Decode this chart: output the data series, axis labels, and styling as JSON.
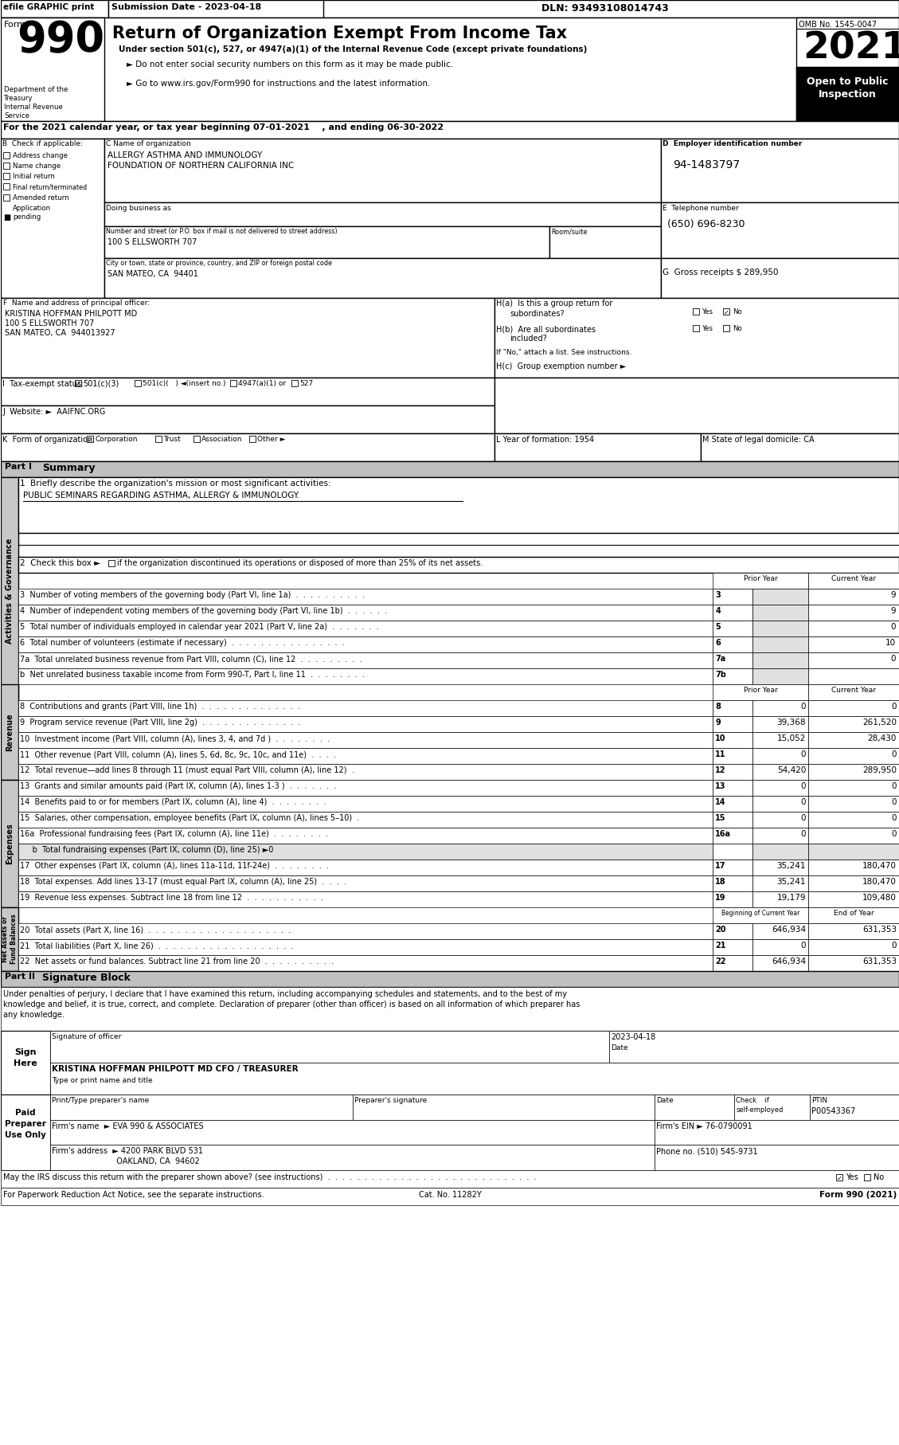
{
  "title": "Return of Organization Exempt From Income Tax",
  "subtitle1": "Under section 501(c), 527, or 4947(a)(1) of the Internal Revenue Code (except private foundations)",
  "subtitle2": "► Do not enter social security numbers on this form as it may be made public.",
  "subtitle3": "► Go to www.irs.gov/Form990 for instructions and the latest information.",
  "form_number": "990",
  "year": "2021",
  "omb": "OMB No. 1545-0047",
  "open_to_public": "Open to Public\nInspection",
  "efile_text": "efile GRAPHIC print",
  "submission_date": "Submission Date - 2023-04-18",
  "dln": "DLN: 93493108014743",
  "tax_year": "For the 2021 calendar year, or tax year beginning 07-01-2021    , and ending 06-30-2022",
  "org_name_line1": "ALLERGY ASTHMA AND IMMUNOLOGY",
  "org_name_line2": "FOUNDATION OF NORTHERN CALIFORNIA INC",
  "doing_business_as": "Doing business as",
  "ein": "94-1483797",
  "address": "100 S ELLSWORTH 707",
  "city": "SAN MATEO, CA  94401",
  "phone": "(650) 696-8230",
  "gross_receipts": "Gross receipts $ 289,950",
  "principal_officer_label": "F  Name and address of principal officer:",
  "principal_officer_name": "KRISTINA HOFFMAN PHILPOTT MD",
  "principal_officer_addr1": "100 S ELLSWORTH 707",
  "principal_officer_addr2": "SAN MATEO, CA  944013927",
  "website_url": "AAIFNC.ORG",
  "year_of_formation": "L Year of formation: 1954",
  "state_domicile": "M State of legal domicile: CA",
  "mission": "PUBLIC SEMINARS REGARDING ASTHMA, ALLERGY & IMMUNOLOGY.",
  "dept_line1": "Department of the",
  "dept_line2": "Treasury",
  "dept_line3": "Internal Revenue",
  "dept_line4": "Service",
  "signature_text1": "Under penalties of perjury, I declare that I have examined this return, including accompanying schedules and statements, and to the best of my",
  "signature_text2": "knowledge and belief, it is true, correct, and complete. Declaration of preparer (other than officer) is based on all information of which preparer has",
  "signature_text3": "any knowledge.",
  "officer_sig_label": "Signature of officer",
  "officer_date_label": "Date",
  "officer_date_val": "2023-04-18",
  "officer_name": "KRISTINA HOFFMAN PHILPOTT MD CFO / TREASURER",
  "officer_name_label": "Type or print name and title",
  "preparer_name_label": "Print/Type preparer's name",
  "preparer_sig_label": "Preparer's signature",
  "preparer_date_label": "Date",
  "preparer_check_label": "Check    if",
  "preparer_check_label2": "self-employed",
  "ptin_label": "PTIN",
  "ptin": "P00543367",
  "firm_name_label": "Firm's name",
  "firm_name": "► EVA 990 & ASSOCIATES",
  "firm_ein": "Firm's EIN ► 76-0790091",
  "firm_address_label": "Firm's address",
  "firm_address": "► 4200 PARK BLVD 531",
  "firm_city": "OAKLAND, CA  94602",
  "firm_phone": "Phone no. (510) 545-9731",
  "paid_preparer_line1": "Paid",
  "paid_preparer_line2": "Preparer",
  "paid_preparer_line3": "Use Only",
  "discuss_label": "May the IRS discuss this return with the preparer shown above? (see instructions)",
  "paperwork_label": "For Paperwork Reduction Act Notice, see the separate instructions.",
  "cat_no": "Cat. No. 11282Y",
  "form_footer": "Form 990 (2021)",
  "lines_3_7": [
    [
      "3",
      "3  Number of voting members of the governing body (Part VI, line 1a)  .  .  .  .  .  .  .  .  .  .",
      "gray",
      "9"
    ],
    [
      "4",
      "4  Number of independent voting members of the governing body (Part VI, line 1b)  .  .  .  .  .  .",
      "gray",
      "9"
    ],
    [
      "5",
      "5  Total number of individuals employed in calendar year 2021 (Part V, line 2a)  .  .  .  .  .  .  .",
      "gray",
      "0"
    ],
    [
      "6",
      "6  Total number of volunteers (estimate if necessary)  .  .  .  .  .  .  .  .  .  .  .  .  .  .  .  .",
      "gray",
      "10"
    ],
    [
      "7a",
      "7a  Total unrelated business revenue from Part VIII, column (C), line 12  .  .  .  .  .  .  .  .  .",
      "gray",
      "0"
    ],
    [
      "7b",
      "b  Net unrelated business taxable income from Form 990-T, Part I, line 11  .  .  .  .  .  .  .  .",
      "gray",
      ""
    ]
  ],
  "rev_lines": [
    [
      "8",
      "8  Contributions and grants (Part VIII, line 1h)  .  .  .  .  .  .  .  .  .  .  .  .  .  .",
      "0",
      "0"
    ],
    [
      "9",
      "9  Program service revenue (Part VIII, line 2g)  .  .  .  .  .  .  .  .  .  .  .  .  .  .",
      "39,368",
      "261,520"
    ],
    [
      "10",
      "10  Investment income (Part VIII, column (A), lines 3, 4, and 7d )  .  .  .  .  .  .  .  .",
      "15,052",
      "28,430"
    ],
    [
      "11",
      "11  Other revenue (Part VIII, column (A), lines 5, 6d, 8c, 9c, 10c, and 11e)  .  .  .  .",
      "0",
      "0"
    ],
    [
      "12",
      "12  Total revenue—add lines 8 through 11 (must equal Part VIII, column (A), line 12)  .",
      "54,420",
      "289,950"
    ]
  ],
  "exp_lines": [
    [
      "13",
      "13  Grants and similar amounts paid (Part IX, column (A), lines 1-3 )  .  .  .  .  .  .  .",
      "0",
      "0",
      false
    ],
    [
      "14",
      "14  Benefits paid to or for members (Part IX, column (A), line 4)  .  .  .  .  .  .  .  .",
      "0",
      "0",
      false
    ],
    [
      "15",
      "15  Salaries, other compensation, employee benefits (Part IX, column (A), lines 5–10)  .",
      "0",
      "0",
      false
    ],
    [
      "16a",
      "16a  Professional fundraising fees (Part IX, column (A), line 11e)  .  .  .  .  .  .  .  .",
      "0",
      "0",
      false
    ],
    [
      "",
      "     b  Total fundraising expenses (Part IX, column (D), line 25) ►0",
      "",
      "",
      true
    ],
    [
      "17",
      "17  Other expenses (Part IX, column (A), lines 11a-11d, 11f-24e)  .  .  .  .  .  .  .  .",
      "35,241",
      "180,470",
      false
    ],
    [
      "18",
      "18  Total expenses. Add lines 13-17 (must equal Part IX, column (A), line 25)  .  .  .  .",
      "35,241",
      "180,470",
      false
    ],
    [
      "19",
      "19  Revenue less expenses. Subtract line 18 from line 12  .  .  .  .  .  .  .  .  .  .  .",
      "19,179",
      "109,480",
      false
    ]
  ],
  "na_lines": [
    [
      "20",
      "20  Total assets (Part X, line 16)  .  .  .  .  .  .  .  .  .  .  .  .  .  .  .  .  .  .  .  .",
      "646,934",
      "631,353"
    ],
    [
      "21",
      "21  Total liabilities (Part X, line 26)  .  .  .  .  .  .  .  .  .  .  .  .  .  .  .  .  .  .  .",
      "0",
      "0"
    ],
    [
      "22",
      "22  Net assets or fund balances. Subtract line 21 from line 20  .  .  .  .  .  .  .  .  .  .",
      "646,934",
      "631,353"
    ]
  ]
}
